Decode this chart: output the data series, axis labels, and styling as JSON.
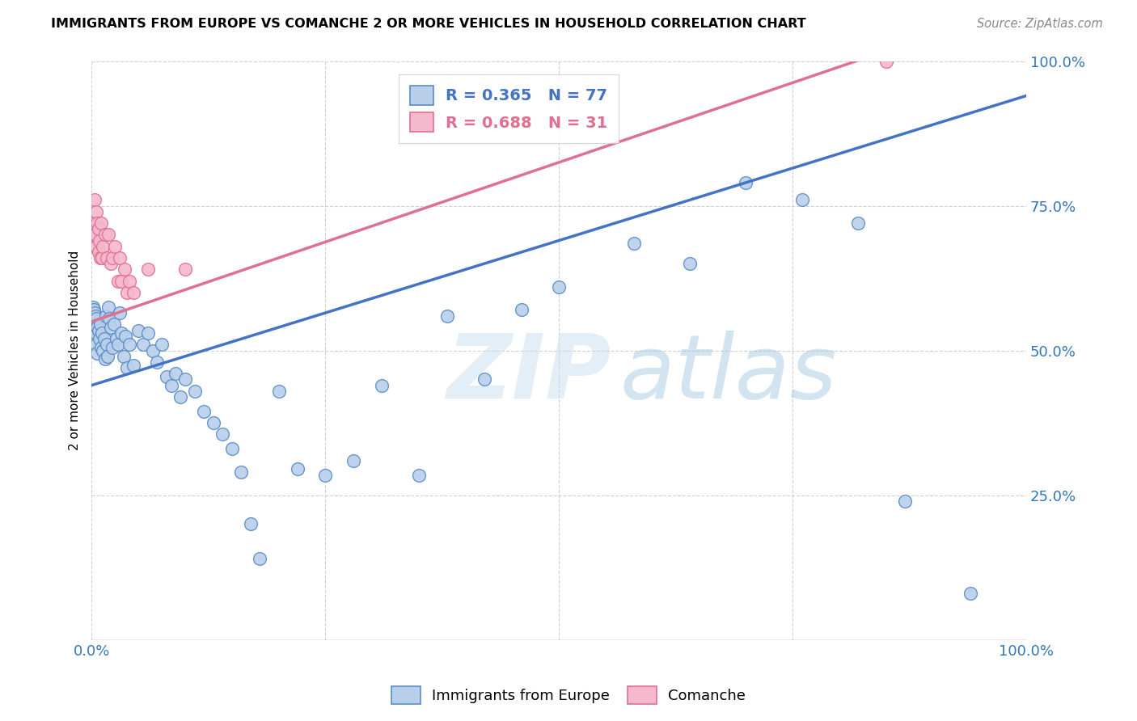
{
  "title": "IMMIGRANTS FROM EUROPE VS COMANCHE 2 OR MORE VEHICLES IN HOUSEHOLD CORRELATION CHART",
  "source": "Source: ZipAtlas.com",
  "ylabel": "2 or more Vehicles in Household",
  "blue_R": 0.365,
  "blue_N": 77,
  "pink_R": 0.688,
  "pink_N": 31,
  "blue_color": "#b8d0ea",
  "blue_edge": "#5b8cc8",
  "pink_color": "#f5b8cc",
  "pink_edge": "#e07090",
  "blue_line_color": "#4472c4",
  "pink_line_color": "#e07090",
  "watermark_color": "#d5e8f5",
  "legend_blue_label": "Immigrants from Europe",
  "legend_pink_label": "Comanche",
  "blue_line_intercept": 0.44,
  "blue_line_slope": 0.5,
  "pink_line_intercept": 0.55,
  "pink_line_slope": 0.55,
  "blue_points_x": [
    0.001,
    0.001,
    0.001,
    0.001,
    0.001,
    0.002,
    0.002,
    0.002,
    0.003,
    0.003,
    0.004,
    0.004,
    0.005,
    0.005,
    0.006,
    0.006,
    0.007,
    0.008,
    0.009,
    0.01,
    0.011,
    0.012,
    0.013,
    0.014,
    0.015,
    0.016,
    0.017,
    0.018,
    0.019,
    0.02,
    0.022,
    0.024,
    0.026,
    0.028,
    0.03,
    0.032,
    0.034,
    0.036,
    0.038,
    0.04,
    0.045,
    0.05,
    0.055,
    0.06,
    0.065,
    0.07,
    0.075,
    0.08,
    0.085,
    0.09,
    0.095,
    0.1,
    0.11,
    0.12,
    0.13,
    0.14,
    0.15,
    0.16,
    0.17,
    0.18,
    0.2,
    0.22,
    0.25,
    0.28,
    0.31,
    0.35,
    0.38,
    0.42,
    0.46,
    0.5,
    0.58,
    0.64,
    0.7,
    0.76,
    0.82,
    0.87,
    0.94
  ],
  "blue_points_y": [
    0.575,
    0.56,
    0.545,
    0.53,
    0.515,
    0.57,
    0.55,
    0.535,
    0.565,
    0.545,
    0.56,
    0.53,
    0.555,
    0.51,
    0.54,
    0.495,
    0.535,
    0.52,
    0.545,
    0.505,
    0.53,
    0.5,
    0.52,
    0.485,
    0.56,
    0.51,
    0.49,
    0.575,
    0.555,
    0.54,
    0.505,
    0.545,
    0.52,
    0.51,
    0.565,
    0.53,
    0.49,
    0.525,
    0.47,
    0.51,
    0.475,
    0.535,
    0.51,
    0.53,
    0.5,
    0.48,
    0.51,
    0.455,
    0.44,
    0.46,
    0.42,
    0.45,
    0.43,
    0.395,
    0.375,
    0.355,
    0.33,
    0.29,
    0.2,
    0.14,
    0.43,
    0.295,
    0.285,
    0.31,
    0.44,
    0.285,
    0.56,
    0.45,
    0.57,
    0.61,
    0.685,
    0.65,
    0.79,
    0.76,
    0.72,
    0.24,
    0.08
  ],
  "pink_points_x": [
    0.001,
    0.002,
    0.003,
    0.003,
    0.004,
    0.005,
    0.005,
    0.006,
    0.007,
    0.007,
    0.008,
    0.009,
    0.01,
    0.011,
    0.012,
    0.014,
    0.016,
    0.018,
    0.02,
    0.022,
    0.025,
    0.028,
    0.03,
    0.032,
    0.035,
    0.038,
    0.04,
    0.045,
    0.06,
    0.1,
    0.85
  ],
  "pink_points_y": [
    0.72,
    0.7,
    0.76,
    0.68,
    0.7,
    0.74,
    0.68,
    0.72,
    0.67,
    0.71,
    0.69,
    0.66,
    0.72,
    0.66,
    0.68,
    0.7,
    0.66,
    0.7,
    0.65,
    0.66,
    0.68,
    0.62,
    0.66,
    0.62,
    0.64,
    0.6,
    0.62,
    0.6,
    0.64,
    0.64,
    1.0
  ]
}
